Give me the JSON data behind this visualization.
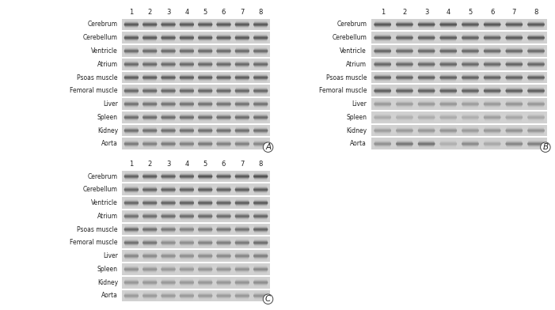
{
  "panels": [
    "A",
    "B",
    "C"
  ],
  "tissues": [
    "Cerebrum",
    "Cerebellum",
    "Ventricle",
    "Atrium",
    "Psoas muscle",
    "Femoral muscle",
    "Liver",
    "Spleen",
    "Kidney",
    "Aorta"
  ],
  "n_lanes": 8,
  "figure_bg": "#ffffff",
  "gel_bg": "#d8d8d8",
  "row_sep_color": "#ffffff",
  "label_fontsize": 5.5,
  "number_fontsize": 6.0,
  "panel_label_fontsize": 7.5,
  "panel_positions": {
    "A": [
      0.115,
      0.51,
      0.375,
      0.465
    ],
    "B": [
      0.545,
      0.51,
      0.445,
      0.465
    ],
    "C": [
      0.115,
      0.02,
      0.375,
      0.465
    ]
  },
  "panel_A_bands": [
    [
      0.88,
      0.88,
      0.88,
      0.88,
      0.88,
      0.88,
      0.88,
      0.88
    ],
    [
      0.9,
      0.9,
      0.9,
      0.9,
      0.9,
      0.9,
      0.9,
      0.9
    ],
    [
      0.75,
      0.75,
      0.75,
      0.75,
      0.75,
      0.75,
      0.75,
      0.75
    ],
    [
      0.78,
      0.78,
      0.78,
      0.78,
      0.78,
      0.78,
      0.78,
      0.78
    ],
    [
      0.85,
      0.85,
      0.85,
      0.85,
      0.85,
      0.85,
      0.85,
      0.85
    ],
    [
      0.8,
      0.8,
      0.8,
      0.8,
      0.8,
      0.8,
      0.8,
      0.8
    ],
    [
      0.7,
      0.7,
      0.7,
      0.7,
      0.7,
      0.7,
      0.7,
      0.7
    ],
    [
      0.75,
      0.75,
      0.75,
      0.75,
      0.75,
      0.75,
      0.75,
      0.75
    ],
    [
      0.72,
      0.72,
      0.72,
      0.72,
      0.72,
      0.72,
      0.72,
      0.72
    ],
    [
      0.65,
      0.6,
      0.65,
      0.6,
      0.65,
      0.6,
      0.6,
      0.55
    ]
  ],
  "panel_B_bands": [
    [
      0.9,
      0.88,
      0.9,
      0.92,
      0.88,
      0.9,
      0.88,
      0.88
    ],
    [
      0.88,
      0.85,
      0.86,
      0.88,
      0.84,
      0.85,
      0.9,
      0.92
    ],
    [
      0.78,
      0.75,
      0.76,
      0.78,
      0.76,
      0.76,
      0.76,
      0.75
    ],
    [
      0.8,
      0.78,
      0.79,
      0.8,
      0.78,
      0.79,
      0.82,
      0.8
    ],
    [
      0.82,
      0.8,
      0.82,
      0.82,
      0.81,
      0.82,
      0.82,
      0.84
    ],
    [
      0.86,
      0.84,
      0.85,
      0.86,
      0.85,
      0.86,
      0.86,
      0.86
    ],
    [
      0.4,
      0.38,
      0.4,
      0.42,
      0.38,
      0.4,
      0.44,
      0.42
    ],
    [
      0.28,
      0.25,
      0.27,
      0.28,
      0.26,
      0.38,
      0.32,
      0.3
    ],
    [
      0.38,
      0.4,
      0.42,
      0.44,
      0.4,
      0.42,
      0.46,
      0.44
    ],
    [
      0.48,
      0.68,
      0.7,
      0.25,
      0.52,
      0.3,
      0.56,
      0.6
    ]
  ],
  "panel_C_bands": [
    [
      0.82,
      0.85,
      0.83,
      0.85,
      0.92,
      0.86,
      0.88,
      0.94
    ],
    [
      0.8,
      0.82,
      0.83,
      0.83,
      0.86,
      0.85,
      0.87,
      0.88
    ],
    [
      0.78,
      0.8,
      0.8,
      0.82,
      0.84,
      0.82,
      0.85,
      0.87
    ],
    [
      0.72,
      0.74,
      0.75,
      0.75,
      0.77,
      0.76,
      0.78,
      0.8
    ],
    [
      0.78,
      0.72,
      0.65,
      0.58,
      0.62,
      0.68,
      0.7,
      0.8
    ],
    [
      0.72,
      0.68,
      0.5,
      0.5,
      0.58,
      0.62,
      0.65,
      0.74
    ],
    [
      0.55,
      0.52,
      0.48,
      0.48,
      0.5,
      0.53,
      0.56,
      0.62
    ],
    [
      0.48,
      0.45,
      0.42,
      0.42,
      0.44,
      0.45,
      0.47,
      0.52
    ],
    [
      0.44,
      0.43,
      0.42,
      0.42,
      0.43,
      0.44,
      0.46,
      0.5
    ],
    [
      0.4,
      0.4,
      0.4,
      0.4,
      0.4,
      0.4,
      0.42,
      0.44
    ]
  ]
}
